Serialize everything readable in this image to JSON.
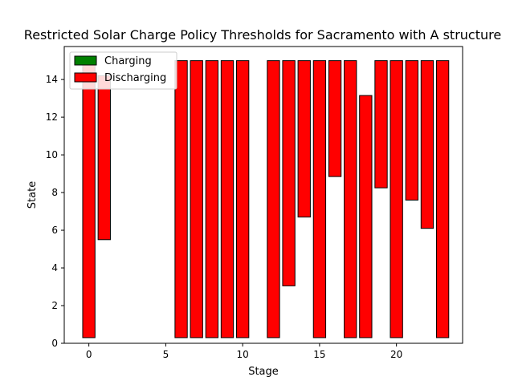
{
  "chart_data": {
    "type": "bar",
    "title": "Restricted Solar Charge Policy Thresholds for Sacramento with A structure",
    "xlabel": "Stage",
    "ylabel": "State",
    "xlim": [
      -1.6,
      24.3
    ],
    "ylim": [
      0,
      15.75
    ],
    "xticks": [
      0,
      5,
      10,
      15,
      20
    ],
    "yticks": [
      0,
      2,
      4,
      6,
      8,
      10,
      12,
      14
    ],
    "grid": false,
    "legend_placement": "top-left",
    "legend": [
      {
        "name": "Charging",
        "color": "#008000"
      },
      {
        "name": "Discharging",
        "color": "#ff0000"
      }
    ],
    "bar_width": 0.8,
    "stages": [
      0,
      1,
      6,
      7,
      8,
      9,
      10,
      12,
      13,
      14,
      15,
      16,
      17,
      18,
      19,
      20,
      21,
      22,
      23
    ],
    "series": [
      {
        "name": "Discharging",
        "color": "#ff0000",
        "bottoms": [
          0.3,
          5.5,
          0.3,
          0.3,
          0.3,
          0.3,
          0.3,
          0.3,
          3.05,
          6.7,
          0.3,
          8.85,
          0.3,
          0.3,
          8.25,
          0.3,
          7.6,
          6.1,
          0.3
        ],
        "tops": [
          15,
          14.2,
          15,
          15,
          15,
          15,
          15,
          15,
          15,
          15,
          15,
          15,
          15,
          13.15,
          15,
          15,
          15,
          15,
          15
        ]
      },
      {
        "name": "Charging",
        "color": "#008000",
        "bottoms": [],
        "tops": []
      }
    ]
  }
}
